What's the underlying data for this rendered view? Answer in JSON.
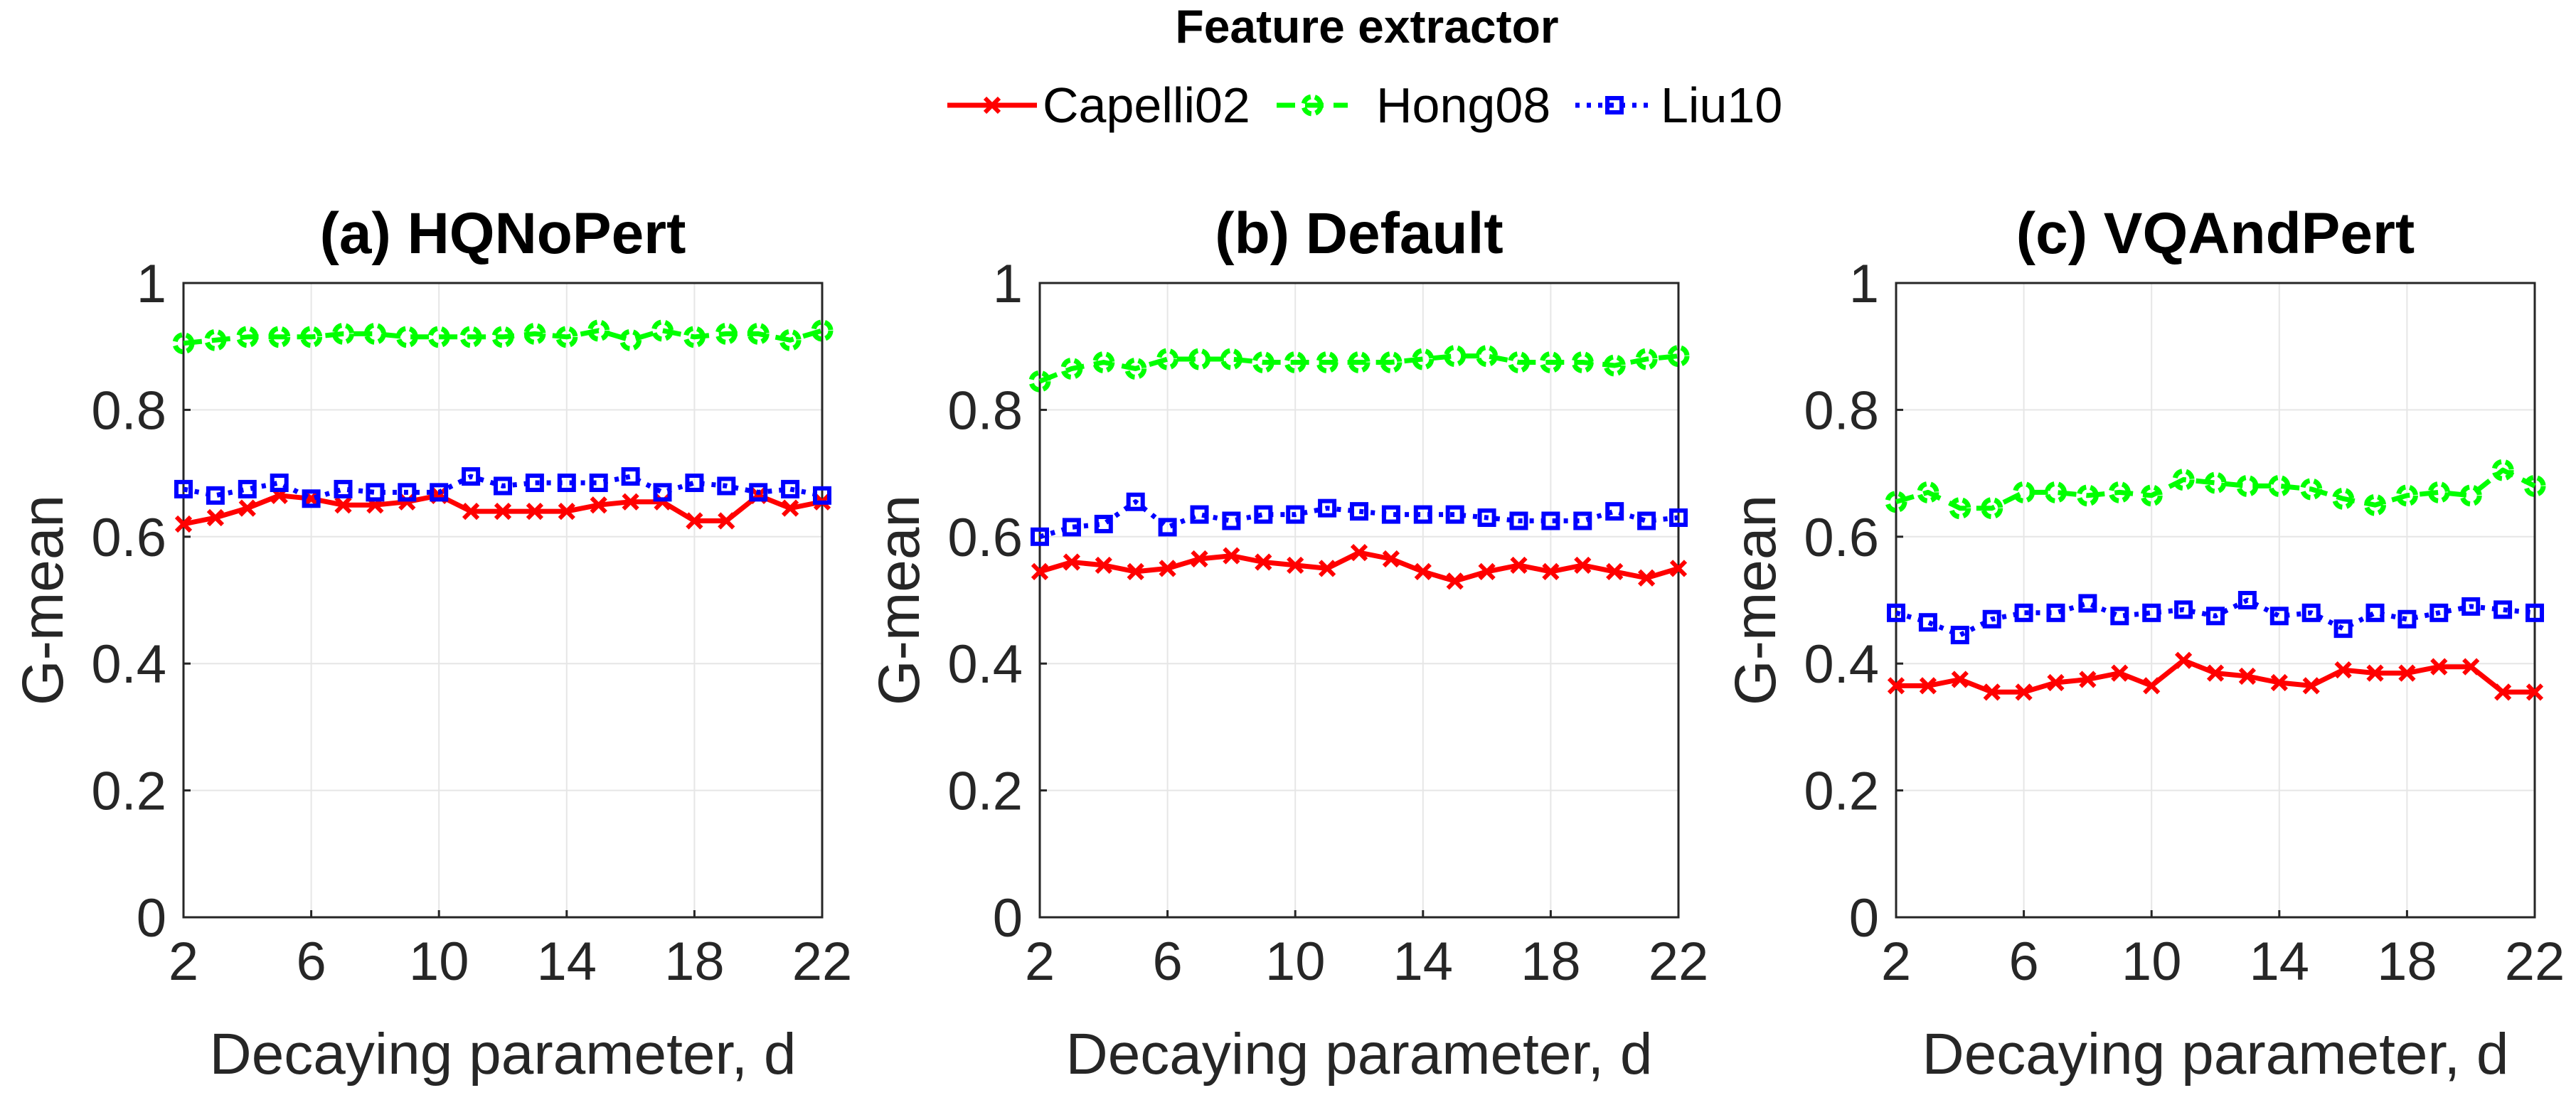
{
  "legend": {
    "title": "Feature extractor",
    "entries": [
      {
        "name": "Capelli02",
        "color": "#ff0000",
        "marker": "x-marker",
        "line": "solid"
      },
      {
        "name": "Hong08",
        "color": "#00ff00",
        "marker": "circle-marker",
        "line": "dashed"
      },
      {
        "name": "Liu10",
        "color": "#0000ff",
        "marker": "square-marker",
        "line": "dotted"
      }
    ]
  },
  "chart_data": [
    {
      "type": "line",
      "title": "(a) HQNoPert",
      "xlabel": "Decaying parameter, d",
      "ylabel": "G-mean",
      "xlim": [
        2,
        22
      ],
      "ylim": [
        0,
        1
      ],
      "xticks": [
        2,
        6,
        10,
        14,
        18,
        22
      ],
      "yticks": [
        0,
        0.2,
        0.4,
        0.6,
        0.8,
        1
      ],
      "grid": true,
      "x": [
        2,
        3,
        4,
        5,
        6,
        7,
        8,
        9,
        10,
        11,
        12,
        13,
        14,
        15,
        16,
        17,
        18,
        19,
        20,
        21,
        22
      ],
      "series": [
        {
          "name": "Capelli02",
          "values": [
            0.62,
            0.63,
            0.645,
            0.665,
            0.66,
            0.65,
            0.65,
            0.655,
            0.665,
            0.64,
            0.64,
            0.64,
            0.64,
            0.65,
            0.655,
            0.655,
            0.625,
            0.625,
            0.665,
            0.645,
            0.655
          ]
        },
        {
          "name": "Hong08",
          "values": [
            0.905,
            0.91,
            0.915,
            0.915,
            0.915,
            0.92,
            0.92,
            0.915,
            0.915,
            0.915,
            0.915,
            0.92,
            0.915,
            0.925,
            0.91,
            0.925,
            0.915,
            0.92,
            0.92,
            0.91,
            0.925
          ]
        },
        {
          "name": "Liu10",
          "values": [
            0.675,
            0.665,
            0.675,
            0.685,
            0.66,
            0.675,
            0.67,
            0.67,
            0.67,
            0.695,
            0.68,
            0.685,
            0.685,
            0.685,
            0.695,
            0.67,
            0.685,
            0.68,
            0.67,
            0.675,
            0.665
          ]
        }
      ]
    },
    {
      "type": "line",
      "title": "(b) Default",
      "xlabel": "Decaying parameter, d",
      "ylabel": "G-mean",
      "xlim": [
        2,
        22
      ],
      "ylim": [
        0,
        1
      ],
      "xticks": [
        2,
        6,
        10,
        14,
        18,
        22
      ],
      "yticks": [
        0,
        0.2,
        0.4,
        0.6,
        0.8,
        1
      ],
      "grid": true,
      "x": [
        2,
        3,
        4,
        5,
        6,
        7,
        8,
        9,
        10,
        11,
        12,
        13,
        14,
        15,
        16,
        17,
        18,
        19,
        20,
        21,
        22
      ],
      "series": [
        {
          "name": "Capelli02",
          "values": [
            0.545,
            0.56,
            0.555,
            0.545,
            0.55,
            0.565,
            0.57,
            0.56,
            0.555,
            0.55,
            0.575,
            0.565,
            0.545,
            0.53,
            0.545,
            0.555,
            0.545,
            0.555,
            0.545,
            0.535,
            0.55
          ]
        },
        {
          "name": "Hong08",
          "values": [
            0.845,
            0.865,
            0.875,
            0.865,
            0.88,
            0.88,
            0.88,
            0.875,
            0.875,
            0.875,
            0.875,
            0.875,
            0.88,
            0.885,
            0.885,
            0.875,
            0.875,
            0.875,
            0.87,
            0.88,
            0.885
          ]
        },
        {
          "name": "Liu10",
          "values": [
            0.6,
            0.615,
            0.62,
            0.655,
            0.615,
            0.635,
            0.625,
            0.635,
            0.635,
            0.645,
            0.64,
            0.635,
            0.635,
            0.635,
            0.63,
            0.625,
            0.625,
            0.625,
            0.64,
            0.625,
            0.63
          ]
        }
      ]
    },
    {
      "type": "line",
      "title": "(c) VQAndPert",
      "xlabel": "Decaying parameter, d",
      "ylabel": "G-mean",
      "xlim": [
        2,
        22
      ],
      "ylim": [
        0,
        1
      ],
      "xticks": [
        2,
        6,
        10,
        14,
        18,
        22
      ],
      "yticks": [
        0,
        0.2,
        0.4,
        0.6,
        0.8,
        1
      ],
      "grid": true,
      "x": [
        2,
        3,
        4,
        5,
        6,
        7,
        8,
        9,
        10,
        11,
        12,
        13,
        14,
        15,
        16,
        17,
        18,
        19,
        20,
        21,
        22
      ],
      "series": [
        {
          "name": "Capelli02",
          "values": [
            0.365,
            0.365,
            0.375,
            0.355,
            0.355,
            0.37,
            0.375,
            0.385,
            0.365,
            0.405,
            0.385,
            0.38,
            0.37,
            0.365,
            0.39,
            0.385,
            0.385,
            0.395,
            0.395,
            0.355,
            0.355
          ]
        },
        {
          "name": "Hong08",
          "values": [
            0.655,
            0.67,
            0.645,
            0.645,
            0.67,
            0.67,
            0.665,
            0.67,
            0.665,
            0.69,
            0.685,
            0.68,
            0.68,
            0.675,
            0.66,
            0.65,
            0.665,
            0.67,
            0.665,
            0.705,
            0.68
          ]
        },
        {
          "name": "Liu10",
          "values": [
            0.48,
            0.465,
            0.445,
            0.47,
            0.48,
            0.48,
            0.495,
            0.475,
            0.48,
            0.485,
            0.475,
            0.5,
            0.475,
            0.48,
            0.455,
            0.48,
            0.47,
            0.48,
            0.49,
            0.485,
            0.48
          ]
        }
      ]
    }
  ]
}
